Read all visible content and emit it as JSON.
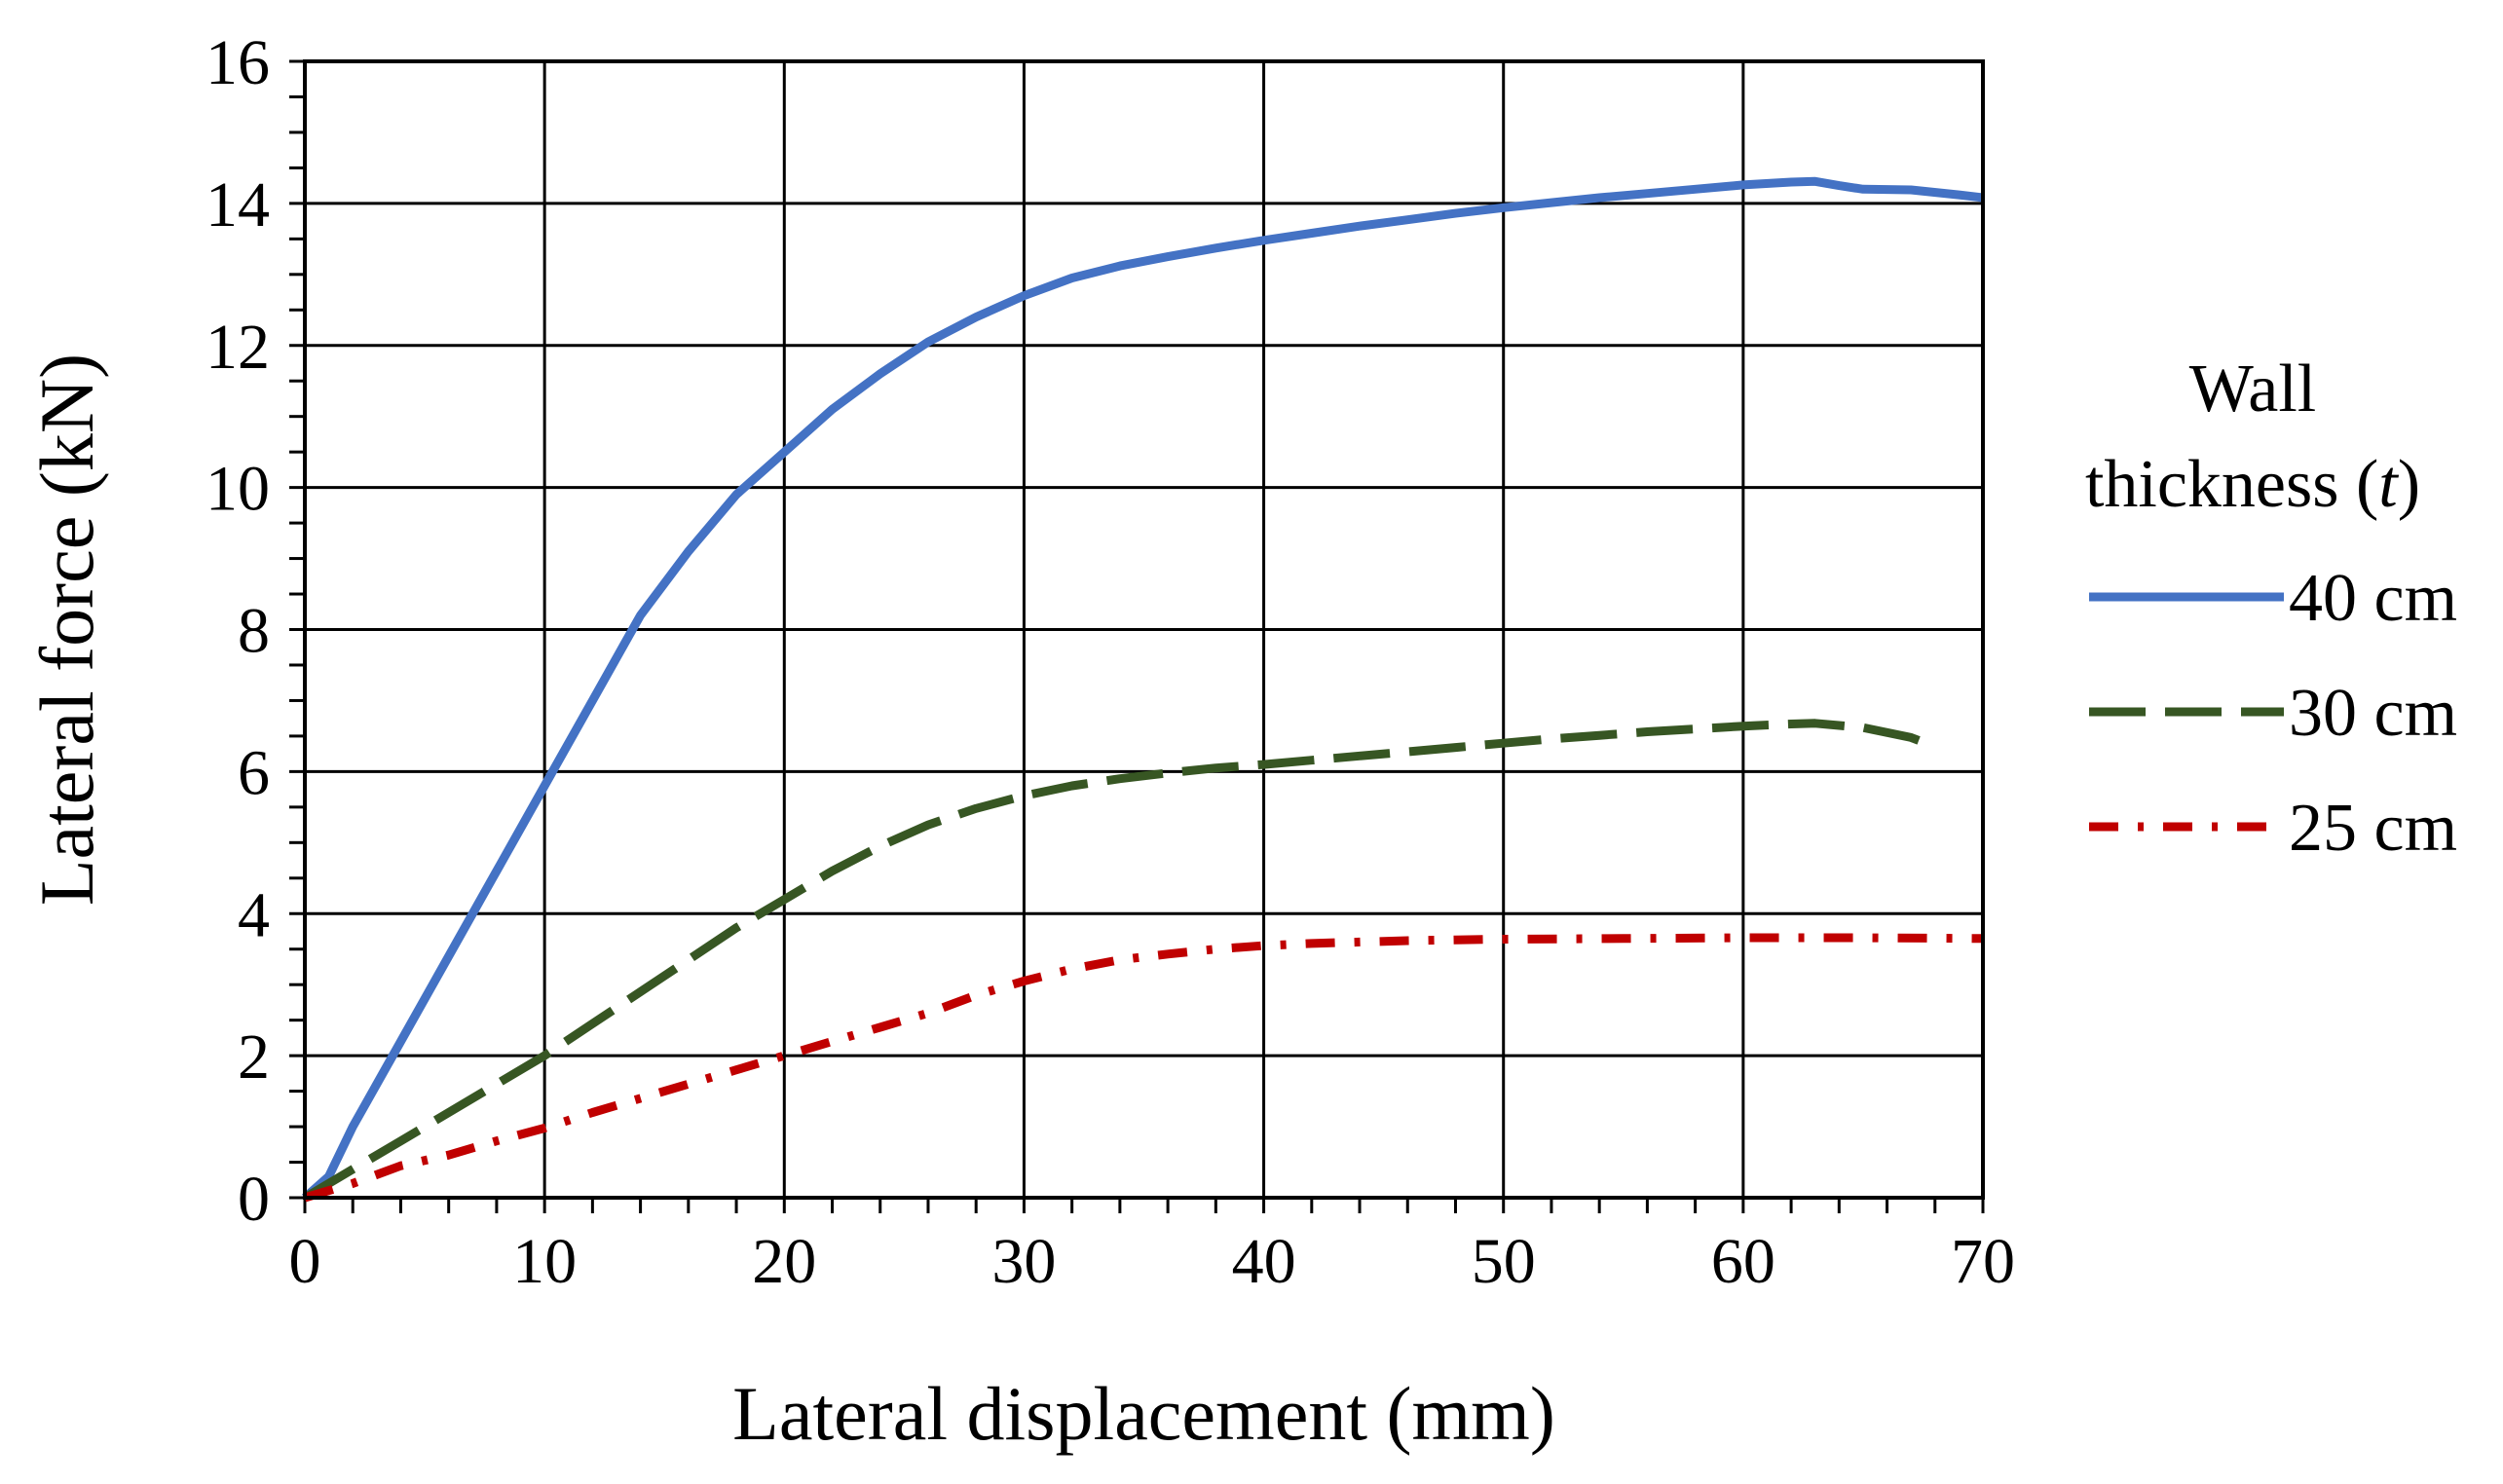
{
  "chart_data": {
    "type": "line",
    "xlabel": "Lateral displacement (mm)",
    "ylabel": "Lateral force (kN)",
    "xlim": [
      0,
      70
    ],
    "ylim": [
      0,
      16
    ],
    "x_ticks": [
      0,
      10,
      20,
      30,
      40,
      50,
      60,
      70
    ],
    "y_ticks": [
      0,
      2,
      4,
      6,
      8,
      10,
      12,
      14,
      16
    ],
    "x_tick_labels": [
      "0",
      "10",
      "20",
      "30",
      "40",
      "50",
      "60",
      "70"
    ],
    "y_tick_labels": [
      "0",
      "2",
      "4",
      "6",
      "8",
      "10",
      "12",
      "14",
      "16"
    ],
    "grid": true,
    "legend": {
      "title_line1": "Wall",
      "title_line2_text": "thickness (",
      "title_line2_italic": "t",
      "title_line2_close": ")",
      "placement": "right"
    },
    "series": [
      {
        "name": "40 cm",
        "color": "#4472C4",
        "dash": "solid",
        "points": [
          [
            0,
            0
          ],
          [
            1,
            0.3
          ],
          [
            2,
            1.0
          ],
          [
            4,
            2.2
          ],
          [
            6,
            3.4
          ],
          [
            8,
            4.6
          ],
          [
            10,
            5.8
          ],
          [
            12,
            7.0
          ],
          [
            14,
            8.2
          ],
          [
            16,
            9.1
          ],
          [
            18,
            9.9
          ],
          [
            20,
            10.5
          ],
          [
            22,
            11.1
          ],
          [
            24,
            11.6
          ],
          [
            26,
            12.05
          ],
          [
            28,
            12.4
          ],
          [
            30,
            12.7
          ],
          [
            32,
            12.95
          ],
          [
            34,
            13.12
          ],
          [
            36,
            13.25
          ],
          [
            38,
            13.37
          ],
          [
            40,
            13.48
          ],
          [
            42,
            13.58
          ],
          [
            44,
            13.68
          ],
          [
            46,
            13.77
          ],
          [
            48,
            13.86
          ],
          [
            50,
            13.94
          ],
          [
            52,
            14.01
          ],
          [
            54,
            14.08
          ],
          [
            56,
            14.14
          ],
          [
            58,
            14.2
          ],
          [
            60,
            14.26
          ],
          [
            62,
            14.3
          ],
          [
            63,
            14.31
          ],
          [
            64,
            14.25
          ],
          [
            65,
            14.2
          ],
          [
            67,
            14.19
          ],
          [
            69,
            14.12
          ],
          [
            70,
            14.08
          ]
        ]
      },
      {
        "name": "30 cm",
        "color": "#375623",
        "dash": "long-dash",
        "points": [
          [
            0,
            0
          ],
          [
            2,
            0.4
          ],
          [
            4,
            0.8
          ],
          [
            6,
            1.2
          ],
          [
            8,
            1.6
          ],
          [
            10,
            2.0
          ],
          [
            12,
            2.45
          ],
          [
            14,
            2.9
          ],
          [
            16,
            3.35
          ],
          [
            18,
            3.8
          ],
          [
            20,
            4.2
          ],
          [
            22,
            4.6
          ],
          [
            24,
            4.95
          ],
          [
            26,
            5.25
          ],
          [
            28,
            5.48
          ],
          [
            30,
            5.66
          ],
          [
            32,
            5.8
          ],
          [
            34,
            5.9
          ],
          [
            36,
            5.98
          ],
          [
            38,
            6.05
          ],
          [
            40,
            6.1
          ],
          [
            42,
            6.16
          ],
          [
            44,
            6.22
          ],
          [
            46,
            6.28
          ],
          [
            48,
            6.34
          ],
          [
            50,
            6.4
          ],
          [
            52,
            6.46
          ],
          [
            54,
            6.51
          ],
          [
            56,
            6.56
          ],
          [
            58,
            6.6
          ],
          [
            60,
            6.64
          ],
          [
            62,
            6.67
          ],
          [
            63,
            6.68
          ],
          [
            65,
            6.62
          ],
          [
            67,
            6.48
          ],
          [
            68,
            6.35
          ]
        ]
      },
      {
        "name": "25 cm",
        "color": "#C00000",
        "dash": "dash-dot",
        "points": [
          [
            0,
            0
          ],
          [
            2,
            0.2
          ],
          [
            4,
            0.45
          ],
          [
            6,
            0.6
          ],
          [
            8,
            0.8
          ],
          [
            10,
            0.98
          ],
          [
            12,
            1.2
          ],
          [
            14,
            1.4
          ],
          [
            16,
            1.6
          ],
          [
            18,
            1.8
          ],
          [
            20,
            2.0
          ],
          [
            22,
            2.2
          ],
          [
            24,
            2.4
          ],
          [
            26,
            2.6
          ],
          [
            28,
            2.85
          ],
          [
            30,
            3.05
          ],
          [
            32,
            3.22
          ],
          [
            34,
            3.35
          ],
          [
            36,
            3.43
          ],
          [
            38,
            3.5
          ],
          [
            40,
            3.55
          ],
          [
            42,
            3.58
          ],
          [
            44,
            3.6
          ],
          [
            46,
            3.62
          ],
          [
            48,
            3.63
          ],
          [
            50,
            3.64
          ],
          [
            55,
            3.65
          ],
          [
            60,
            3.66
          ],
          [
            65,
            3.66
          ],
          [
            70,
            3.65
          ]
        ]
      }
    ]
  }
}
